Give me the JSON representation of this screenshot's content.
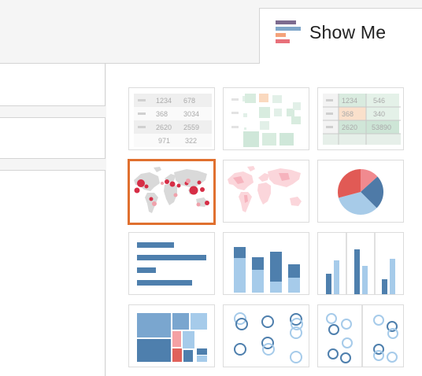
{
  "panel": {
    "title": "Show Me",
    "logo_icon": "show-me-bars-icon",
    "accent_color": "#e0702f"
  },
  "text_table": {
    "rows": [
      [
        "1234",
        "678"
      ],
      [
        "368",
        "3034"
      ],
      [
        "2620",
        "2559"
      ],
      [
        "971",
        "322"
      ]
    ]
  },
  "highlight_table": {
    "rows": [
      [
        "1234",
        "546"
      ],
      [
        "368",
        "340"
      ],
      [
        "2620",
        "53890"
      ]
    ]
  },
  "thumbnails": [
    {
      "name": "text-table",
      "icon": "text-table-icon"
    },
    {
      "name": "heat-map",
      "icon": "heat-map-icon"
    },
    {
      "name": "highlight-table",
      "icon": "highlight-table-icon"
    },
    {
      "name": "symbol-map",
      "icon": "symbol-map-icon",
      "selected": true
    },
    {
      "name": "filled-map",
      "icon": "filled-map-icon"
    },
    {
      "name": "pie-chart",
      "icon": "pie-chart-icon"
    },
    {
      "name": "horizontal-bars",
      "icon": "horizontal-bars-icon"
    },
    {
      "name": "stacked-bars",
      "icon": "stacked-bars-icon"
    },
    {
      "name": "side-by-side-bars",
      "icon": "side-by-side-bars-icon"
    },
    {
      "name": "treemap",
      "icon": "treemap-icon"
    },
    {
      "name": "circle-views",
      "icon": "circle-views-icon"
    },
    {
      "name": "side-by-side-circles",
      "icon": "side-by-side-circles-icon"
    }
  ]
}
